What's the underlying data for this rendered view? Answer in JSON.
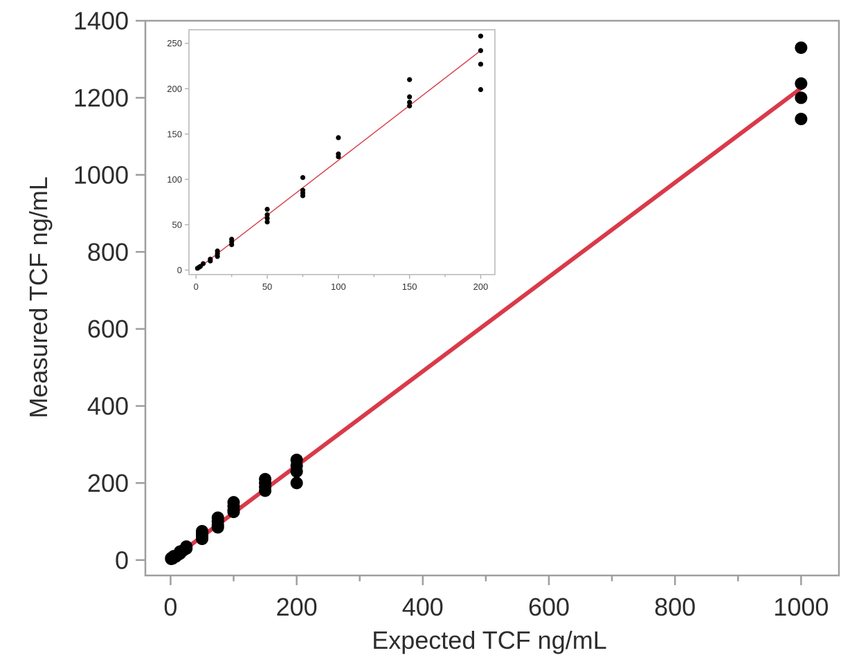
{
  "chart_data": [
    {
      "type": "scatter",
      "title": "",
      "xlabel": "Expected TCF ng/mL",
      "ylabel": "Measured TCF ng/mL",
      "xlim": [
        -40,
        1060
      ],
      "ylim": [
        -40,
        1400
      ],
      "xticks": [
        "0",
        "200",
        "400",
        "600",
        "800",
        "1000"
      ],
      "yticks": [
        "0",
        "200",
        "400",
        "600",
        "800",
        "1000",
        "1200",
        "1400"
      ],
      "xtick_values": [
        0,
        200,
        400,
        600,
        800,
        1000
      ],
      "ytick_values": [
        0,
        200,
        400,
        600,
        800,
        1000,
        1200,
        1400
      ],
      "x_minor_ticks": [
        100,
        300,
        500,
        700,
        900
      ],
      "grid": false,
      "legend": "none",
      "series": [
        {
          "points": [
            [
              1,
              3
            ],
            [
              1,
              5
            ],
            [
              2,
              6
            ],
            [
              3,
              4
            ],
            [
              5,
              8
            ],
            [
              5,
              10
            ],
            [
              8,
              9
            ],
            [
              10,
              12
            ],
            [
              12,
              14
            ],
            [
              15,
              17
            ],
            [
              15,
              22
            ],
            [
              20,
              25
            ],
            [
              25,
              30
            ],
            [
              25,
              35
            ],
            [
              50,
              55
            ],
            [
              50,
              60
            ],
            [
              50,
              65
            ],
            [
              50,
              70
            ],
            [
              50,
              75
            ],
            [
              75,
              85
            ],
            [
              75,
              90
            ],
            [
              75,
              100
            ],
            [
              75,
              110
            ],
            [
              100,
              125
            ],
            [
              100,
              130
            ],
            [
              100,
              140
            ],
            [
              100,
              150
            ],
            [
              150,
              180
            ],
            [
              150,
              190
            ],
            [
              150,
              200
            ],
            [
              150,
              210
            ],
            [
              200,
              200
            ],
            [
              200,
              230
            ],
            [
              200,
              245
            ],
            [
              200,
              260
            ],
            [
              1000,
              1145
            ],
            [
              1000,
              1200
            ],
            [
              1000,
              1237
            ],
            [
              1000,
              1330
            ]
          ]
        }
      ],
      "fit_line": {
        "x": [
          0,
          1000
        ],
        "y": [
          0,
          1225
        ]
      },
      "colors": {
        "points": "#000000",
        "fit_line": "#d93a4a",
        "frame": "#9e9e9e"
      }
    },
    {
      "type": "scatter",
      "title": "",
      "xlabel": "",
      "ylabel": "",
      "xlim": [
        -5,
        210
      ],
      "ylim": [
        -5,
        265
      ],
      "xticks": [
        "0",
        "50",
        "100",
        "150",
        "200"
      ],
      "yticks": [
        "0",
        "50",
        "100",
        "150",
        "200",
        "250"
      ],
      "xtick_values": [
        0,
        50,
        100,
        150,
        200
      ],
      "ytick_values": [
        0,
        50,
        100,
        150,
        200,
        250
      ],
      "x_minor_ticks": [
        25,
        75,
        125,
        175
      ],
      "grid": false,
      "legend": "none",
      "series": [
        {
          "points": [
            [
              1,
              2
            ],
            [
              2,
              3
            ],
            [
              3,
              4
            ],
            [
              5,
              7
            ],
            [
              10,
              10
            ],
            [
              10,
              12
            ],
            [
              15,
              15
            ],
            [
              15,
              18
            ],
            [
              15,
              21
            ],
            [
              25,
              28
            ],
            [
              25,
              31
            ],
            [
              25,
              34
            ],
            [
              50,
              53
            ],
            [
              50,
              57
            ],
            [
              50,
              61
            ],
            [
              50,
              67
            ],
            [
              75,
              82
            ],
            [
              75,
              85
            ],
            [
              75,
              88
            ],
            [
              75,
              102
            ],
            [
              100,
              125
            ],
            [
              100,
              128
            ],
            [
              100,
              146
            ],
            [
              150,
              181
            ],
            [
              150,
              185
            ],
            [
              150,
              191
            ],
            [
              150,
              210
            ],
            [
              200,
              199
            ],
            [
              200,
              227
            ],
            [
              200,
              242
            ],
            [
              200,
              258
            ]
          ]
        }
      ],
      "fit_line": {
        "x": [
          0,
          200
        ],
        "y": [
          0,
          242
        ]
      },
      "colors": {
        "points": "#000000",
        "fit_line": "#d9454f",
        "frame": "#b5b5b5"
      }
    }
  ]
}
